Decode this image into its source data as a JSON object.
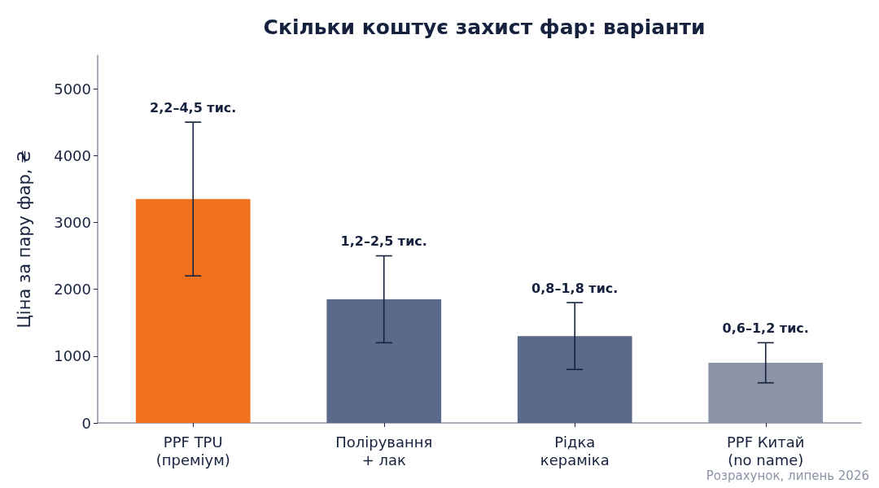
{
  "chart_data": {
    "type": "bar",
    "title": "Скільки коштує захист фар: варіанти",
    "ylabel": "Ціна за пару фар, ₴",
    "categories": [
      "PPF TPU\n(преміум)",
      "Полірування\n+ лак",
      "Рідка\nкераміка",
      "PPF Китай\n(no name)"
    ],
    "values": [
      3350,
      1850,
      1300,
      900
    ],
    "colors": [
      "#f2711c",
      "#5b6a8a",
      "#5b6a8a",
      "#8a94a6"
    ],
    "errors": [
      [
        2200,
        4500
      ],
      [
        1200,
        2500
      ],
      [
        800,
        1800
      ],
      [
        600,
        1200
      ]
    ],
    "ylim": [
      0,
      5500
    ],
    "yticks": [
      0,
      1000,
      2000,
      3000,
      4000,
      5000
    ],
    "grid": false,
    "annotations": [
      {
        "text": "2,2–4,5 тис.",
        "x": "PPF TPU\n(преміум)",
        "y": 4500
      },
      {
        "text": "1,2–2,5 тис.",
        "x": "Полірування\n+ лак",
        "y": 2500
      },
      {
        "text": "0,8–1,8 тис.",
        "x": "Рідка\nкераміка",
        "y": 1800
      },
      {
        "text": "0,6–1,2 тис.",
        "x": "PPF Китай\n(no name)",
        "y": 1200
      },
      "Розрахунок, липень 2026"
    ]
  }
}
